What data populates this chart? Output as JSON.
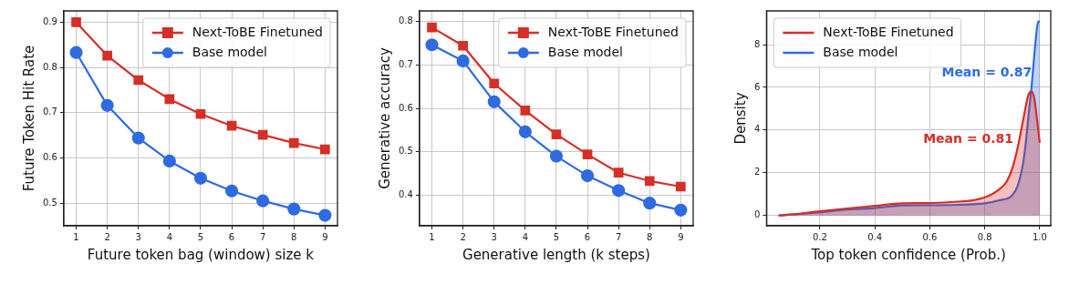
{
  "chart_data": [
    {
      "type": "line",
      "xlabel": "Future token bag (window) size k",
      "ylabel": "Future Token Hit Rate",
      "x": [
        1,
        2,
        3,
        4,
        5,
        6,
        7,
        8,
        9
      ],
      "xlim": [
        0.6,
        9.4
      ],
      "xticks": [
        1,
        2,
        3,
        4,
        5,
        6,
        7,
        8,
        9
      ],
      "ylim": [
        0.45,
        0.925
      ],
      "yticks": [
        0.5,
        0.6,
        0.7,
        0.8,
        0.9
      ],
      "grid": true,
      "legend": "top right",
      "series": [
        {
          "name": "Next-ToBE Finetuned",
          "color": "#d62e28",
          "marker": "square",
          "values": [
            0.9,
            0.826,
            0.772,
            0.73,
            0.697,
            0.671,
            0.651,
            0.633,
            0.619
          ]
        },
        {
          "name": "Base model",
          "color": "#2f6be0",
          "marker": "circle",
          "values": [
            0.833,
            0.716,
            0.644,
            0.593,
            0.555,
            0.527,
            0.505,
            0.487,
            0.473
          ]
        }
      ]
    },
    {
      "type": "line",
      "xlabel": "Generative length (k steps)",
      "ylabel": "Generative accuracy",
      "x": [
        1,
        2,
        3,
        4,
        5,
        6,
        7,
        8,
        9
      ],
      "xlim": [
        0.6,
        9.4
      ],
      "xticks": [
        1,
        2,
        3,
        4,
        5,
        6,
        7,
        8,
        9
      ],
      "ylim": [
        0.33,
        0.824
      ],
      "yticks": [
        0.4,
        0.5,
        0.6,
        0.7,
        0.8
      ],
      "grid": true,
      "legend": "top right",
      "series": [
        {
          "name": "Next-ToBE Finetuned",
          "color": "#d62e28",
          "marker": "square",
          "values": [
            0.786,
            0.744,
            0.657,
            0.595,
            0.54,
            0.494,
            0.452,
            0.433,
            0.42
          ]
        },
        {
          "name": "Base model",
          "color": "#2f6be0",
          "marker": "circle",
          "values": [
            0.746,
            0.709,
            0.615,
            0.546,
            0.49,
            0.445,
            0.411,
            0.382,
            0.366
          ]
        }
      ]
    },
    {
      "type": "area",
      "xlabel": "Top token confidence (Prob.)",
      "ylabel": "Density",
      "xlim": [
        0.006,
        1.04
      ],
      "xticks": [
        0.2,
        0.4,
        0.6,
        0.8,
        {
          "value": 1,
          "label": "1.0"
        }
      ],
      "ylim": [
        -0.48,
        9.58
      ],
      "yticks": [
        0,
        2,
        4,
        6,
        8
      ],
      "grid": true,
      "legend": "top left",
      "marker": "none",
      "annotations": [
        "Mean = 0.81",
        "Mean = 0.87"
      ],
      "series": [
        {
          "name": "Next-ToBE Finetuned",
          "color": "#d62e28",
          "x": [
            0.05,
            0.1,
            0.2,
            0.3,
            0.4,
            0.5,
            0.55,
            0.6,
            0.7,
            0.75,
            0.8,
            0.85,
            0.88,
            0.9,
            0.92,
            0.94,
            0.96,
            0.97,
            0.98,
            0.99,
            1.0
          ],
          "values": [
            0,
            0.05,
            0.2,
            0.33,
            0.45,
            0.57,
            0.58,
            0.58,
            0.65,
            0.7,
            0.85,
            1.2,
            1.6,
            2.2,
            3.2,
            4.5,
            5.7,
            5.8,
            5.5,
            4.5,
            3.4
          ]
        },
        {
          "name": "Base model",
          "color": "#2f6be0",
          "x": [
            0.05,
            0.2,
            0.3,
            0.4,
            0.5,
            0.6,
            0.7,
            0.8,
            0.85,
            0.9,
            0.92,
            0.94,
            0.95,
            0.96,
            0.97,
            0.98,
            0.99,
            0.995,
            1.0
          ],
          "values": [
            0,
            0.15,
            0.28,
            0.35,
            0.47,
            0.48,
            0.5,
            0.57,
            0.7,
            0.95,
            1.4,
            2.5,
            3.5,
            4.8,
            6.0,
            7.5,
            8.8,
            9.1,
            9.05
          ]
        }
      ]
    }
  ]
}
